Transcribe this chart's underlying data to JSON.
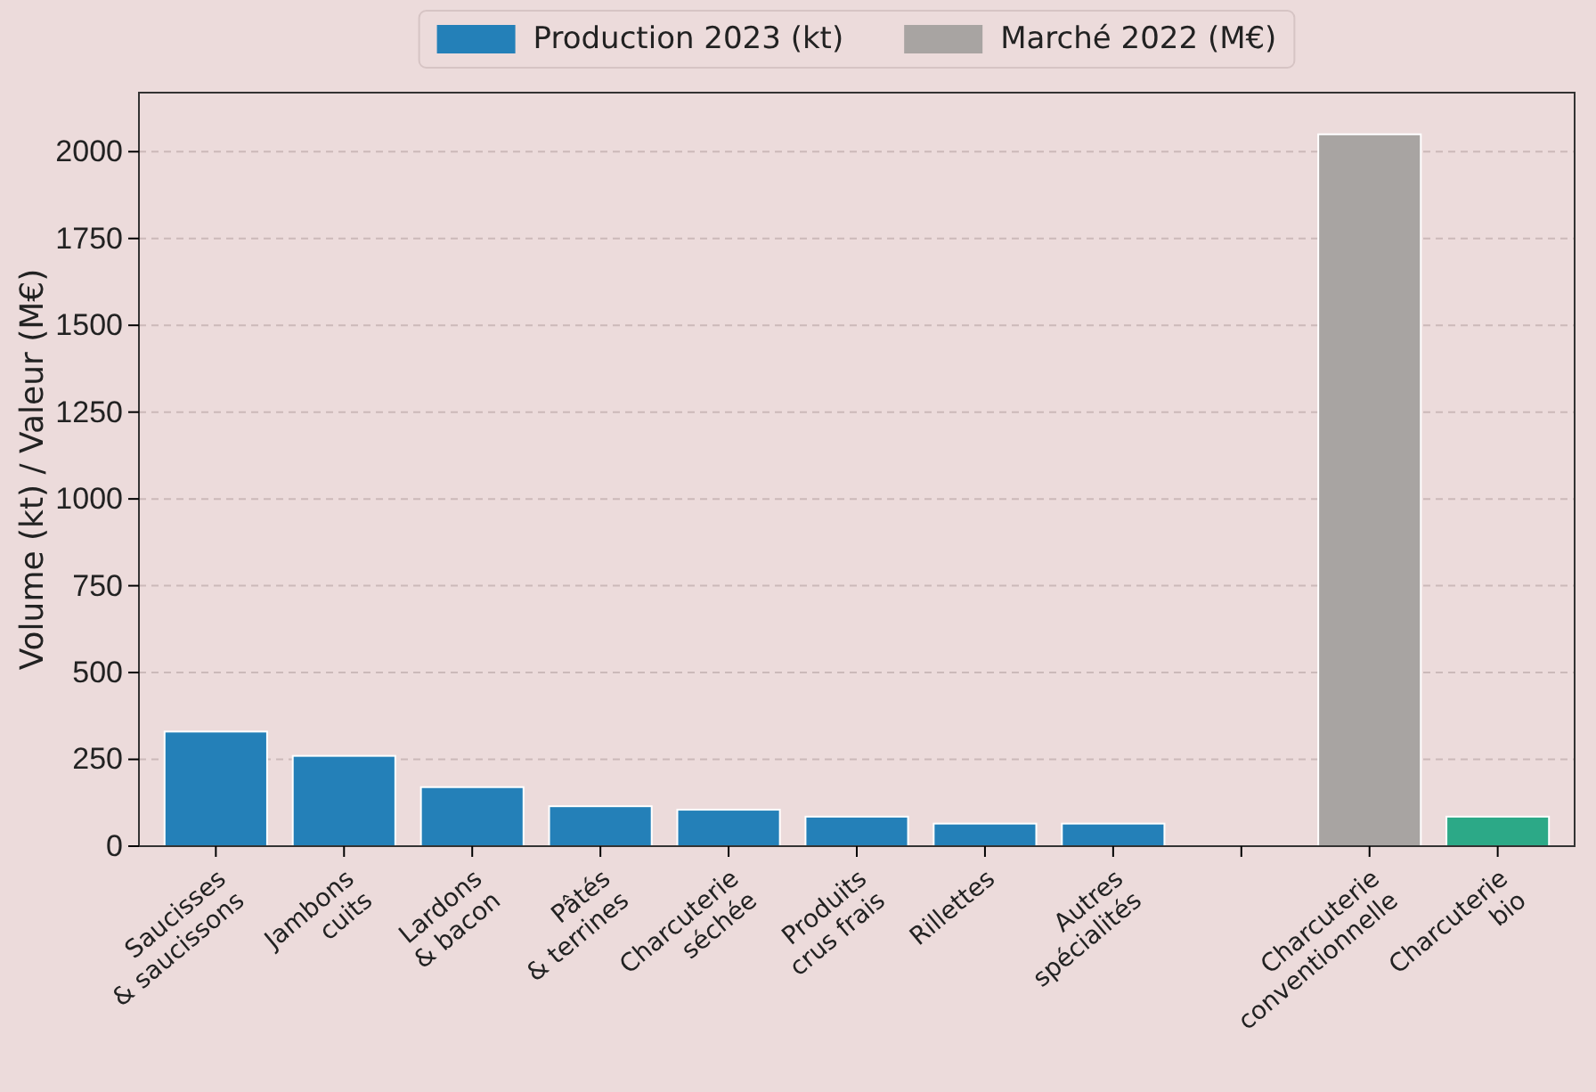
{
  "chart_data": {
    "type": "bar",
    "ylabel": "Volume (kt) / Valeur (M€)",
    "categories": [
      "Saucisses\n& saucissons",
      "Jambons\ncuits",
      "Lardons\n& bacon",
      "Pâtés\n& terrines",
      "Charcuterie\nséchée",
      "Produits\ncrus frais",
      "Rillettes",
      "Autres\nspécialités",
      null,
      "Charcuterie\nconventionnelle",
      "Charcuterie\nbio"
    ],
    "series": [
      {
        "name": "Production 2023 (kt)",
        "color": "#2480b8",
        "values": [
          330,
          260,
          170,
          115,
          105,
          85,
          65,
          65,
          null,
          null,
          null
        ]
      },
      {
        "name": "Marché 2022 (M€)",
        "color": "#a8a4a2",
        "values": [
          null,
          null,
          null,
          null,
          null,
          null,
          null,
          null,
          null,
          2050,
          null
        ]
      },
      {
        "color": "#2ca987",
        "values": [
          null,
          null,
          null,
          null,
          null,
          null,
          null,
          null,
          null,
          null,
          85
        ]
      }
    ],
    "ylim": [
      0,
      2170
    ],
    "yticks": [
      0,
      250,
      500,
      750,
      1000,
      1250,
      1500,
      1750,
      2000
    ],
    "grid": "y",
    "legend": "top"
  }
}
